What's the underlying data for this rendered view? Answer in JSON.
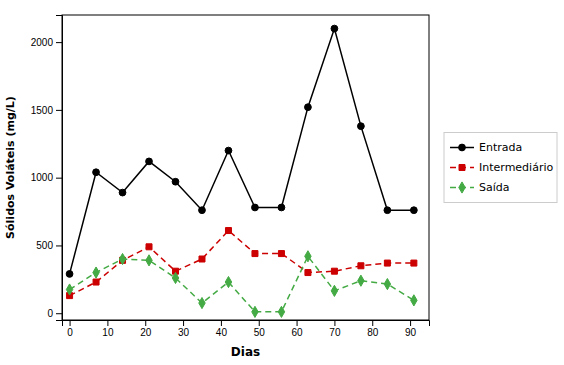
{
  "chart_data": {
    "type": "line",
    "x": [
      0,
      7,
      14,
      21,
      28,
      35,
      42,
      49,
      56,
      63,
      70,
      77,
      84,
      91
    ],
    "series": [
      {
        "name": "Entrada",
        "color": "#000000",
        "marker": "circle",
        "line_style": "solid",
        "values": [
          290,
          1040,
          890,
          1120,
          970,
          760,
          1200,
          780,
          780,
          1520,
          2100,
          1380,
          760,
          760
        ]
      },
      {
        "name": "Intermediário",
        "color": "#cc0000",
        "marker": "square",
        "line_style": "dashed",
        "values": [
          130,
          230,
          390,
          490,
          310,
          400,
          610,
          440,
          440,
          300,
          310,
          350,
          370,
          370
        ]
      },
      {
        "name": "Saída",
        "color": "#44aa44",
        "marker": "diamond",
        "line_style": "dashed",
        "values": [
          175,
          300,
          400,
          390,
          260,
          75,
          230,
          10,
          10,
          420,
          165,
          240,
          215,
          95
        ]
      }
    ],
    "xlabel": "Dias",
    "ylabel": "Sólidos Voláteis (mg/L)",
    "xlim": [
      -2,
      95
    ],
    "ylim": [
      -50,
      2200
    ],
    "xticks": [
      0,
      10,
      20,
      30,
      40,
      50,
      60,
      70,
      80,
      90
    ],
    "yticks": [
      0,
      500,
      1000,
      1500,
      2000
    ],
    "grid": false,
    "legend": "right"
  }
}
